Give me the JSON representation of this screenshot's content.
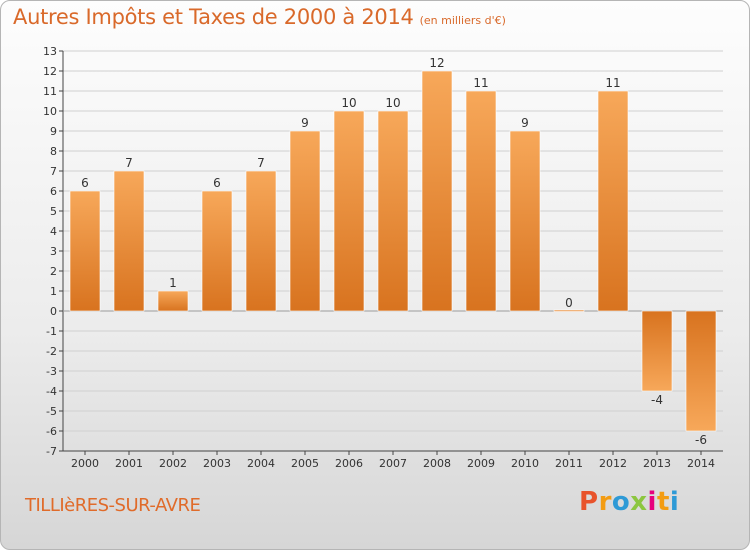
{
  "header": {
    "title": "Autres Impôts et Taxes de 2000 à 2014",
    "subtitle": "(en milliers d'€)"
  },
  "footer": {
    "place": "TILLIèRES-SUR-AVRE",
    "logo_letters": [
      "P",
      "r",
      "o",
      "x",
      "i",
      "t",
      "i"
    ],
    "logo_colors": [
      "#e8532b",
      "#f39c12",
      "#2e9ad6",
      "#8cc63f",
      "#e6007e",
      "#f39c12",
      "#2e9ad6"
    ]
  },
  "colors": {
    "bar_light": "#f7a85a",
    "bar_dark": "#d8731f",
    "axis": "#444444",
    "label": "#333333",
    "grid": "#d0d0d0"
  },
  "chart_data": {
    "type": "bar",
    "categories": [
      "2000",
      "2001",
      "2002",
      "2003",
      "2004",
      "2005",
      "2006",
      "2007",
      "2008",
      "2009",
      "2010",
      "2011",
      "2012",
      "2013",
      "2014"
    ],
    "values": [
      6,
      7,
      1,
      6,
      7,
      9,
      10,
      10,
      12,
      11,
      9,
      0,
      11,
      -4,
      -6
    ],
    "data_labels": [
      "6",
      "7",
      "1",
      "6",
      "7",
      "9",
      "10",
      "10",
      "12",
      "11",
      "9",
      "0",
      "11",
      "-4",
      "-6"
    ],
    "ylim": [
      -7,
      13
    ],
    "yticks": [
      -7,
      -6,
      -5,
      -4,
      -3,
      -2,
      -1,
      0,
      1,
      2,
      3,
      4,
      5,
      6,
      7,
      8,
      9,
      10,
      11,
      12,
      13
    ],
    "ytick_labels": [
      "-7",
      "-6",
      "-5",
      "-4",
      "-3",
      "-2",
      "-1",
      "0",
      "1",
      "2",
      "3",
      "4",
      "5",
      "6",
      "7",
      "8",
      "9",
      "10",
      "11",
      "12",
      "13"
    ],
    "grid": true,
    "title": "Autres Impôts et Taxes de 2000 à 2014",
    "ylabel": "",
    "xlabel": ""
  }
}
